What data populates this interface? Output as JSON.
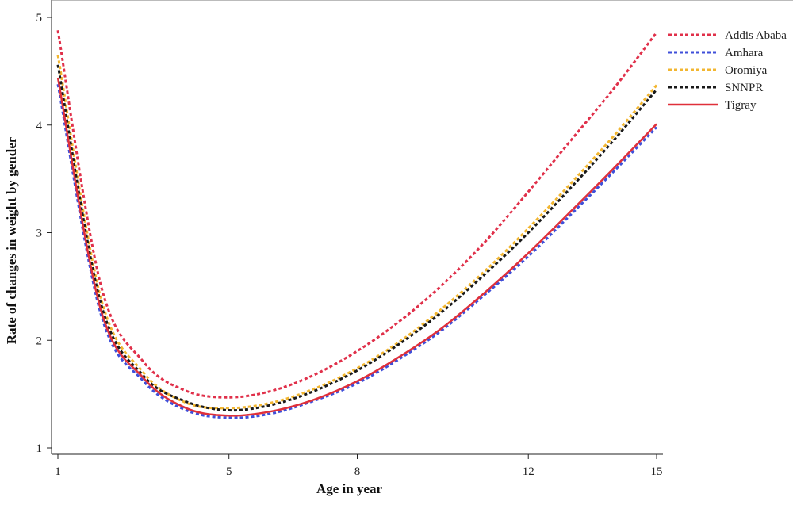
{
  "chart_data": {
    "type": "line",
    "title": "",
    "xlabel": "Age in year",
    "ylabel": "Rate of changes in weight by gender",
    "xlim": [
      1,
      15
    ],
    "ylim": [
      1,
      5
    ],
    "xticks": [
      1,
      5,
      8,
      12,
      15
    ],
    "yticks": [
      1,
      2,
      3,
      4,
      5
    ],
    "grid": false,
    "legend_position": "top-right",
    "x": [
      1,
      2,
      3,
      4,
      5,
      6,
      7,
      8,
      9,
      10,
      11,
      12,
      13,
      14,
      15
    ],
    "series": [
      {
        "name": "Addis Ababa",
        "color": "#e0304a",
        "dashed": true,
        "values": [
          4.88,
          2.52,
          1.8,
          1.53,
          1.47,
          1.53,
          1.68,
          1.9,
          2.18,
          2.52,
          2.92,
          3.38,
          3.86,
          4.34,
          4.86
        ]
      },
      {
        "name": "Amhara",
        "color": "#3f4fd9",
        "dashed": true,
        "values": [
          4.38,
          2.25,
          1.62,
          1.35,
          1.28,
          1.32,
          1.44,
          1.6,
          1.83,
          2.1,
          2.43,
          2.78,
          3.17,
          3.57,
          3.98
        ]
      },
      {
        "name": "Oromiya",
        "color": "#f2b630",
        "dashed": true,
        "values": [
          4.65,
          2.4,
          1.7,
          1.42,
          1.37,
          1.42,
          1.55,
          1.74,
          1.99,
          2.3,
          2.65,
          3.04,
          3.46,
          3.9,
          4.37
        ]
      },
      {
        "name": "SNNPR",
        "color": "#1a1a1a",
        "dashed": true,
        "values": [
          4.56,
          2.35,
          1.67,
          1.43,
          1.35,
          1.4,
          1.53,
          1.72,
          1.97,
          2.27,
          2.62,
          3.0,
          3.42,
          3.86,
          4.33
        ]
      },
      {
        "name": "Tigray",
        "color": "#e0303a",
        "dashed": false,
        "values": [
          4.44,
          2.29,
          1.65,
          1.37,
          1.3,
          1.34,
          1.45,
          1.62,
          1.85,
          2.12,
          2.45,
          2.81,
          3.2,
          3.6,
          4.01
        ]
      }
    ]
  }
}
